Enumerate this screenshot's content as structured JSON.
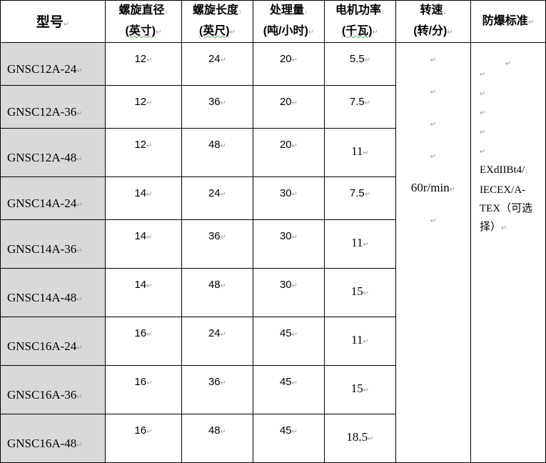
{
  "headers": [
    {
      "line1": "型号",
      "line2": ""
    },
    {
      "line1": "螺旋直径",
      "line2": "(英寸)"
    },
    {
      "line1": "螺旋长度",
      "line2": "(英尺)"
    },
    {
      "line1": "处理量",
      "line2": "(吨/小时)"
    },
    {
      "line1": "电机功率",
      "line2": "(千瓦)"
    },
    {
      "line1": "转速",
      "line2": "(转/分)"
    },
    {
      "line1": "防爆标准",
      "line2": ""
    }
  ],
  "rows": [
    {
      "model": "GNSC12A-24",
      "diameter": "12",
      "length": "24",
      "capacity": "20",
      "power": "5.5"
    },
    {
      "model": "GNSC12A-36",
      "diameter": "12",
      "length": "36",
      "capacity": "20",
      "power": "7.5"
    },
    {
      "model": "GNSC12A-48",
      "diameter": "12",
      "length": "48",
      "capacity": "20",
      "power": "11"
    },
    {
      "model": "GNSC14A-24",
      "diameter": "14",
      "length": "24",
      "capacity": "30",
      "power": "7.5"
    },
    {
      "model": "GNSC14A-36",
      "diameter": "14",
      "length": "36",
      "capacity": "30",
      "power": "11"
    },
    {
      "model": "GNSC14A-48",
      "diameter": "14",
      "length": "48",
      "capacity": "30",
      "power": "15"
    },
    {
      "model": "GNSC16A-24",
      "diameter": "16",
      "length": "24",
      "capacity": "45",
      "power": "11"
    },
    {
      "model": "GNSC16A-36",
      "diameter": "16",
      "length": "36",
      "capacity": "45",
      "power": "15"
    },
    {
      "model": "GNSC16A-48",
      "diameter": "16",
      "length": "48",
      "capacity": "45",
      "power": "18.5"
    }
  ],
  "speed": "60r/min",
  "explosion_standard": {
    "line1": "EXdIIBt4/",
    "line2": "IECEX/A-",
    "line3": "TEX（可选",
    "line4": "择）"
  }
}
